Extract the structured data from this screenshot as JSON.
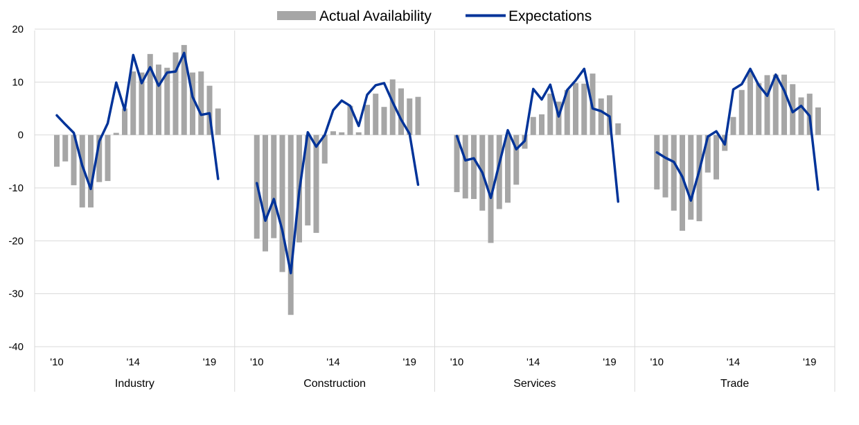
{
  "chart_data": {
    "type": "bar",
    "title": "",
    "xlabel": "",
    "ylabel": "",
    "ylim": [
      -40,
      20
    ],
    "y_ticks": [
      "20",
      "10",
      "0",
      "-10",
      "-20",
      "-30",
      "-40"
    ],
    "y_tick_values": [
      20,
      10,
      0,
      -10,
      -20,
      -30,
      -40
    ],
    "grid": true,
    "legend_position": "top-center",
    "legend": [
      {
        "name": "Actual Availability",
        "kind": "bar",
        "color": "#a6a6a6"
      },
      {
        "name": "Expectations",
        "kind": "line",
        "color": "#003399"
      }
    ],
    "x_tick_labels": [
      "'10",
      "'14",
      "'19"
    ],
    "x_tick_positions": [
      0,
      9,
      18
    ],
    "colors": {
      "bar": "#a6a6a6",
      "line": "#003399",
      "grid": "#d9d9d9",
      "axis": "#bfbfbf"
    },
    "panels": [
      {
        "label": "Industry",
        "actual_availability": [
          -6,
          -5,
          -9.5,
          -13.7,
          -13.7,
          -8.9,
          -8.7,
          0.4,
          5,
          12,
          11.8,
          15.3,
          13.3,
          12.7,
          15.6,
          17,
          11.8,
          12,
          9.3,
          5
        ],
        "expectations": [
          3.7,
          2,
          0.4,
          -5.8,
          -10.2,
          -1.2,
          2.2,
          9.9,
          4.7,
          15.1,
          9.8,
          12.8,
          9.3,
          11.8,
          12,
          15.5,
          7.2,
          3.8,
          4.1,
          -8.3
        ]
      },
      {
        "label": "Construction",
        "actual_availability": [
          -19.6,
          -22,
          -19.5,
          -25.9,
          -34,
          -20.3,
          -17.1,
          -18.5,
          -5.4,
          0.7,
          0.5,
          5.5,
          0.5,
          5.7,
          7.8,
          5.3,
          10.5,
          8.8,
          6.9,
          7.2
        ],
        "expectations": [
          -9.1,
          -16.2,
          -12.1,
          -18,
          -26.1,
          -10.6,
          0.5,
          -2.2,
          0,
          4.7,
          6.5,
          5.5,
          1.7,
          7.6,
          9.4,
          9.8,
          6.2,
          2.9,
          0.2,
          -9.4
        ]
      },
      {
        "label": "Services",
        "actual_availability": [
          -10.8,
          -12,
          -12.1,
          -14.3,
          -20.4,
          -14,
          -12.8,
          -9.4,
          -2.6,
          3.4,
          3.9,
          7.8,
          6.3,
          8.5,
          9.8,
          9.7,
          11.6,
          6.9,
          7.5,
          2.2
        ],
        "expectations": [
          -0.2,
          -4.8,
          -4.4,
          -7.1,
          -11.9,
          -5.4,
          0.9,
          -2.7,
          -1.1,
          8.7,
          6.7,
          9.5,
          3.5,
          8.5,
          10.3,
          12.5,
          5,
          4.5,
          3.5,
          -12.6
        ]
      },
      {
        "label": "Trade",
        "actual_availability": [
          -10.3,
          -11.8,
          -14.3,
          -18.1,
          -16,
          -16.3,
          -7.1,
          -8.4,
          -3,
          3.4,
          8.5,
          12,
          9.8,
          11.3,
          11.4,
          11.4,
          9.6,
          7.1,
          7.8,
          5.2
        ],
        "expectations": [
          -3.3,
          -4.3,
          -5.1,
          -7.9,
          -12.4,
          -6.7,
          -0.3,
          0.7,
          -1.8,
          8.6,
          9.6,
          12.5,
          9.4,
          7.4,
          11.4,
          8.4,
          4.3,
          5.5,
          3.6,
          -10.3
        ]
      }
    ]
  }
}
